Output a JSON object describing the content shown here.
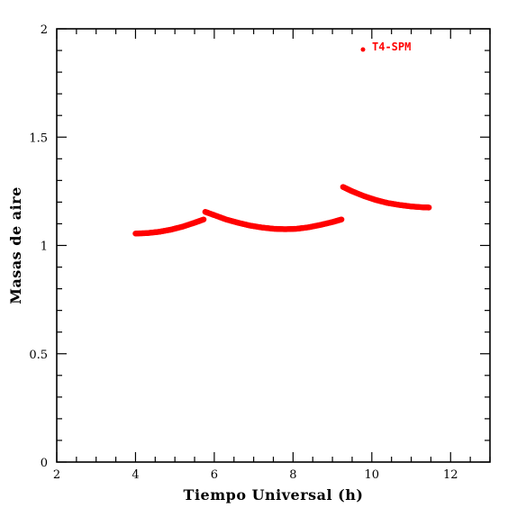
{
  "chart_data": {
    "type": "scatter",
    "title": "",
    "xlabel": "Tiempo Universal (h)",
    "ylabel": "Masas de aire",
    "xlim": [
      2,
      13
    ],
    "ylim": [
      0,
      2
    ],
    "x_major_ticks": [
      2,
      4,
      6,
      8,
      10,
      12
    ],
    "y_major_ticks": [
      0,
      0.5,
      1,
      1.5,
      2
    ],
    "x_tick_labels": [
      "2",
      "4",
      "6",
      "8",
      "10",
      "12"
    ],
    "y_tick_labels": [
      "0",
      "0.5",
      "1",
      "1.5",
      "2"
    ],
    "grid": false,
    "legend": {
      "label": "T4-SPM",
      "position": "top-right"
    },
    "series": [
      {
        "name": "T4-SPM",
        "color": "#ff0000",
        "segments": [
          {
            "x": [
              4.0,
              4.3,
              4.6,
              4.9,
              5.2,
              5.5,
              5.73
            ],
            "y": [
              1.055,
              1.057,
              1.063,
              1.073,
              1.087,
              1.105,
              1.12
            ]
          },
          {
            "x": [
              5.77,
              6.0,
              6.3,
              6.6,
              6.9,
              7.2,
              7.5,
              7.8,
              8.1,
              8.4,
              8.7,
              9.0,
              9.23
            ],
            "y": [
              1.155,
              1.14,
              1.12,
              1.105,
              1.092,
              1.083,
              1.077,
              1.075,
              1.077,
              1.084,
              1.095,
              1.108,
              1.12
            ]
          },
          {
            "x": [
              9.27,
              9.5,
              9.8,
              10.1,
              10.4,
              10.7,
              11.0,
              11.3,
              11.45
            ],
            "y": [
              1.27,
              1.25,
              1.228,
              1.21,
              1.196,
              1.187,
              1.18,
              1.176,
              1.175
            ]
          }
        ]
      }
    ]
  }
}
